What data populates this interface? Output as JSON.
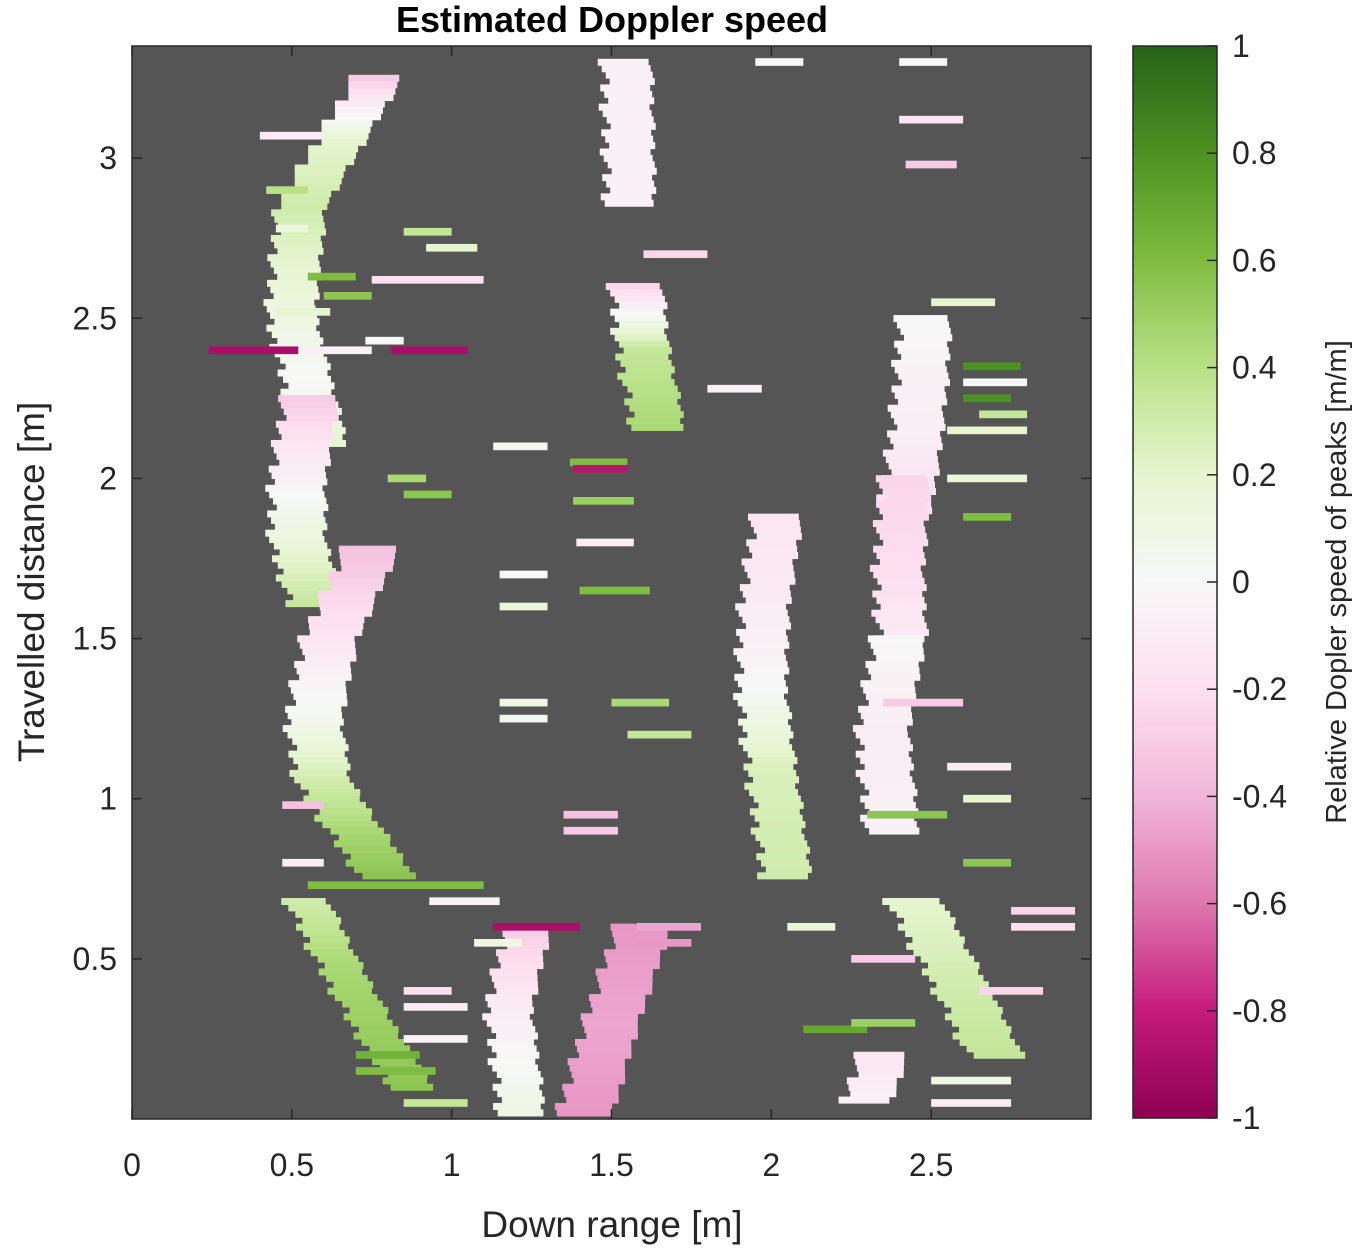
{
  "chart_data": {
    "type": "heatmap",
    "title": "Estimated Doppler speed",
    "xlabel": "Down range [m]",
    "ylabel": "Travelled distance [m]",
    "xlim": [
      0,
      3
    ],
    "ylim": [
      0,
      3.35
    ],
    "xticks": [
      0,
      0.5,
      1,
      1.5,
      2,
      2.5
    ],
    "xtick_labels": [
      "0",
      "0.5",
      "1",
      "1.5",
      "2",
      "2.5"
    ],
    "yticks": [
      0.5,
      1,
      1.5,
      2,
      2.5,
      3
    ],
    "ytick_labels": [
      "0.5",
      "1",
      "1.5",
      "2",
      "2.5",
      "3"
    ],
    "background_color": "#555555",
    "colorbar": {
      "label": "Relative Dopler speed of peaks [m/m]",
      "range": [
        -1,
        1
      ],
      "ticks": [
        1,
        0.8,
        0.6,
        0.4,
        0.2,
        0,
        -0.2,
        -0.4,
        -0.6,
        -0.8,
        -1
      ],
      "tick_labels": [
        "1",
        "0.8",
        "0.6",
        "0.4",
        "0.2",
        "0",
        "-0.2",
        "-0.4",
        "-0.6",
        "-0.8",
        "-1"
      ],
      "colors": [
        "#8e0152",
        "#c51b7d",
        "#de77ae",
        "#f1b6da",
        "#fde0ef",
        "#f7f7f7",
        "#e6f5d0",
        "#b8e186",
        "#7fbc41",
        "#4d9221",
        "#276419"
      ]
    },
    "grid": false,
    "tracks": [
      {
        "x": [
          0.77,
          0.65,
          0.53,
          0.5,
          0.55,
          0.6
        ],
        "y": [
          3.25,
          3.05,
          2.85,
          2.5,
          2.3,
          2.1
        ],
        "w": 0.15,
        "v": [
          -0.3,
          0.2,
          0.3,
          0.1,
          0.0,
          0.2
        ]
      },
      {
        "x": [
          0.56,
          0.52,
          0.52,
          0.58
        ],
        "y": [
          2.25,
          2.0,
          1.8,
          1.6
        ],
        "w": 0.17,
        "v": [
          -0.3,
          -0.05,
          0.15,
          0.35
        ]
      },
      {
        "x": [
          0.75,
          0.62,
          0.57,
          0.6,
          0.7,
          0.8
        ],
        "y": [
          1.78,
          1.5,
          1.25,
          1.05,
          0.9,
          0.76
        ],
        "w": 0.17,
        "v": [
          -0.35,
          -0.15,
          0.05,
          0.3,
          0.45,
          0.55
        ]
      },
      {
        "x": [
          0.55,
          0.65,
          0.75,
          0.88
        ],
        "y": [
          0.68,
          0.48,
          0.3,
          0.1
        ],
        "w": 0.13,
        "v": [
          0.3,
          0.45,
          0.5,
          0.55
        ]
      },
      {
        "x": [
          1.24,
          1.18,
          1.22
        ],
        "y": [
          0.6,
          0.35,
          0.02
        ],
        "w": 0.14,
        "v": [
          -0.3,
          -0.1,
          0.1
        ]
      },
      {
        "x": [
          1.6,
          1.5,
          1.42
        ],
        "y": [
          0.6,
          0.3,
          0.02
        ],
        "w": 0.17,
        "v": [
          -0.5,
          -0.45,
          -0.5
        ]
      },
      {
        "x": [
          1.55,
          1.56
        ],
        "y": [
          3.3,
          2.85
        ],
        "w": 0.15,
        "v": [
          -0.05,
          -0.05
        ]
      },
      {
        "x": [
          1.58,
          1.6,
          1.65
        ],
        "y": [
          2.6,
          2.4,
          2.15
        ],
        "w": 0.16,
        "v": [
          -0.25,
          0.35,
          0.45
        ]
      },
      {
        "x": [
          2.02,
          1.98,
          1.97,
          2.0,
          2.05
        ],
        "y": [
          1.88,
          1.6,
          1.35,
          1.1,
          0.75
        ],
        "w": 0.15,
        "v": [
          -0.15,
          -0.1,
          0.0,
          0.25,
          0.3
        ]
      },
      {
        "x": [
          2.48,
          2.47,
          2.45,
          2.42
        ],
        "y": [
          2.5,
          2.3,
          2.1,
          1.9
        ],
        "w": 0.16,
        "v": [
          0.0,
          -0.05,
          -0.1,
          -0.2
        ]
      },
      {
        "x": [
          2.42,
          2.4,
          2.41
        ],
        "y": [
          2.0,
          1.7,
          1.5
        ],
        "w": 0.15,
        "v": [
          -0.25,
          -0.2,
          -0.1
        ]
      },
      {
        "x": [
          2.4,
          2.35,
          2.38
        ],
        "y": [
          1.5,
          1.2,
          0.9
        ],
        "w": 0.16,
        "v": [
          0.0,
          -0.1,
          -0.05
        ]
      },
      {
        "x": [
          2.45,
          2.6,
          2.7
        ],
        "y": [
          0.68,
          0.4,
          0.2
        ],
        "w": 0.17,
        "v": [
          0.2,
          0.3,
          0.35
        ]
      },
      {
        "x": [
          2.35,
          2.3
        ],
        "y": [
          0.2,
          0.05
        ],
        "w": 0.15,
        "v": [
          -0.15,
          -0.05
        ]
      }
    ],
    "segments": [
      {
        "x0": 0.24,
        "x1": 0.52,
        "y": 2.4,
        "v": -0.9
      },
      {
        "x0": 0.81,
        "x1": 1.05,
        "y": 2.4,
        "v": -0.9
      },
      {
        "x0": 0.53,
        "x1": 0.75,
        "y": 2.4,
        "v": -0.05
      },
      {
        "x0": 0.73,
        "x1": 0.85,
        "y": 2.43,
        "v": 0.0
      },
      {
        "x0": 0.55,
        "x1": 0.7,
        "y": 2.63,
        "v": 0.6
      },
      {
        "x0": 0.6,
        "x1": 0.75,
        "y": 2.57,
        "v": 0.55
      },
      {
        "x0": 0.45,
        "x1": 0.62,
        "y": 2.52,
        "v": 0.2
      },
      {
        "x0": 0.45,
        "x1": 0.55,
        "y": 2.78,
        "v": 0.15
      },
      {
        "x0": 0.4,
        "x1": 0.6,
        "y": 3.07,
        "v": -0.1
      },
      {
        "x0": 0.42,
        "x1": 0.55,
        "y": 2.9,
        "v": 0.4
      },
      {
        "x0": 0.75,
        "x1": 1.1,
        "y": 2.62,
        "v": -0.2
      },
      {
        "x0": 0.85,
        "x1": 1.0,
        "y": 2.77,
        "v": 0.35
      },
      {
        "x0": 0.92,
        "x1": 1.08,
        "y": 2.72,
        "v": 0.2
      },
      {
        "x0": 0.8,
        "x1": 0.92,
        "y": 2.0,
        "v": 0.45
      },
      {
        "x0": 0.85,
        "x1": 1.0,
        "y": 1.95,
        "v": 0.55
      },
      {
        "x0": 1.13,
        "x1": 1.3,
        "y": 2.1,
        "v": 0.05
      },
      {
        "x0": 1.37,
        "x1": 1.55,
        "y": 2.05,
        "v": 0.6
      },
      {
        "x0": 1.38,
        "x1": 1.55,
        "y": 2.03,
        "v": -0.85
      },
      {
        "x0": 1.38,
        "x1": 1.57,
        "y": 1.93,
        "v": 0.5
      },
      {
        "x0": 1.39,
        "x1": 1.57,
        "y": 1.8,
        "v": -0.1
      },
      {
        "x0": 1.15,
        "x1": 1.3,
        "y": 1.7,
        "v": 0.0
      },
      {
        "x0": 1.15,
        "x1": 1.3,
        "y": 1.6,
        "v": 0.15
      },
      {
        "x0": 1.4,
        "x1": 1.62,
        "y": 1.65,
        "v": 0.6
      },
      {
        "x0": 1.15,
        "x1": 1.3,
        "y": 1.3,
        "v": 0.1
      },
      {
        "x0": 1.15,
        "x1": 1.3,
        "y": 1.25,
        "v": 0.05
      },
      {
        "x0": 1.5,
        "x1": 1.68,
        "y": 1.3,
        "v": 0.45
      },
      {
        "x0": 1.55,
        "x1": 1.75,
        "y": 1.2,
        "v": 0.35
      },
      {
        "x0": 1.35,
        "x1": 1.52,
        "y": 0.95,
        "v": -0.35
      },
      {
        "x0": 1.35,
        "x1": 1.52,
        "y": 0.9,
        "v": -0.3
      },
      {
        "x0": 0.93,
        "x1": 1.15,
        "y": 0.68,
        "v": -0.05
      },
      {
        "x0": 1.07,
        "x1": 1.22,
        "y": 0.55,
        "v": 0.1
      },
      {
        "x0": 1.13,
        "x1": 1.4,
        "y": 0.6,
        "v": -0.9
      },
      {
        "x0": 0.85,
        "x1": 1.05,
        "y": 0.35,
        "v": -0.1
      },
      {
        "x0": 0.85,
        "x1": 1.05,
        "y": 0.25,
        "v": -0.05
      },
      {
        "x0": 0.85,
        "x1": 1.0,
        "y": 0.4,
        "v": -0.2
      },
      {
        "x0": 0.7,
        "x1": 0.9,
        "y": 0.2,
        "v": 0.65
      },
      {
        "x0": 0.7,
        "x1": 0.95,
        "y": 0.15,
        "v": 0.6
      },
      {
        "x0": 0.85,
        "x1": 1.05,
        "y": 0.05,
        "v": 0.35
      },
      {
        "x0": 0.47,
        "x1": 0.6,
        "y": 0.98,
        "v": -0.35
      },
      {
        "x0": 0.47,
        "x1": 0.6,
        "y": 0.8,
        "v": -0.1
      },
      {
        "x0": 0.55,
        "x1": 1.1,
        "y": 0.73,
        "v": 0.6
      },
      {
        "x0": 1.58,
        "x1": 1.78,
        "y": 0.6,
        "v": -0.45
      },
      {
        "x0": 1.58,
        "x1": 1.75,
        "y": 0.55,
        "v": -0.5
      },
      {
        "x0": 1.8,
        "x1": 1.97,
        "y": 2.28,
        "v": -0.05
      },
      {
        "x0": 1.6,
        "x1": 1.8,
        "y": 2.7,
        "v": -0.25
      },
      {
        "x0": 1.95,
        "x1": 2.1,
        "y": 3.3,
        "v": 0.0
      },
      {
        "x0": 2.4,
        "x1": 2.55,
        "y": 3.3,
        "v": 0.0
      },
      {
        "x0": 2.4,
        "x1": 2.6,
        "y": 3.12,
        "v": -0.15
      },
      {
        "x0": 2.42,
        "x1": 2.58,
        "y": 2.98,
        "v": -0.3
      },
      {
        "x0": 2.5,
        "x1": 2.7,
        "y": 2.55,
        "v": 0.2
      },
      {
        "x0": 2.6,
        "x1": 2.78,
        "y": 2.35,
        "v": 0.8
      },
      {
        "x0": 2.6,
        "x1": 2.8,
        "y": 2.3,
        "v": 0.0
      },
      {
        "x0": 2.6,
        "x1": 2.75,
        "y": 2.25,
        "v": 0.8
      },
      {
        "x0": 2.65,
        "x1": 2.8,
        "y": 2.2,
        "v": 0.35
      },
      {
        "x0": 2.55,
        "x1": 2.8,
        "y": 2.15,
        "v": 0.2
      },
      {
        "x0": 2.55,
        "x1": 2.8,
        "y": 2.0,
        "v": 0.15
      },
      {
        "x0": 2.6,
        "x1": 2.75,
        "y": 1.88,
        "v": 0.6
      },
      {
        "x0": 2.35,
        "x1": 2.6,
        "y": 1.3,
        "v": -0.3
      },
      {
        "x0": 2.3,
        "x1": 2.55,
        "y": 0.95,
        "v": 0.55
      },
      {
        "x0": 2.55,
        "x1": 2.75,
        "y": 1.1,
        "v": -0.1
      },
      {
        "x0": 2.6,
        "x1": 2.75,
        "y": 1.0,
        "v": 0.2
      },
      {
        "x0": 2.6,
        "x1": 2.75,
        "y": 0.8,
        "v": 0.55
      },
      {
        "x0": 2.75,
        "x1": 2.95,
        "y": 0.65,
        "v": -0.25
      },
      {
        "x0": 2.75,
        "x1": 2.95,
        "y": 0.6,
        "v": -0.2
      },
      {
        "x0": 2.65,
        "x1": 2.85,
        "y": 0.4,
        "v": -0.25
      },
      {
        "x0": 2.05,
        "x1": 2.2,
        "y": 0.6,
        "v": 0.15
      },
      {
        "x0": 2.1,
        "x1": 2.3,
        "y": 0.28,
        "v": 0.7
      },
      {
        "x0": 2.25,
        "x1": 2.45,
        "y": 0.3,
        "v": 0.5
      },
      {
        "x0": 2.25,
        "x1": 2.45,
        "y": 0.5,
        "v": -0.3
      },
      {
        "x0": 2.5,
        "x1": 2.75,
        "y": 0.12,
        "v": 0.1
      },
      {
        "x0": 2.5,
        "x1": 2.75,
        "y": 0.05,
        "v": -0.1
      }
    ]
  }
}
